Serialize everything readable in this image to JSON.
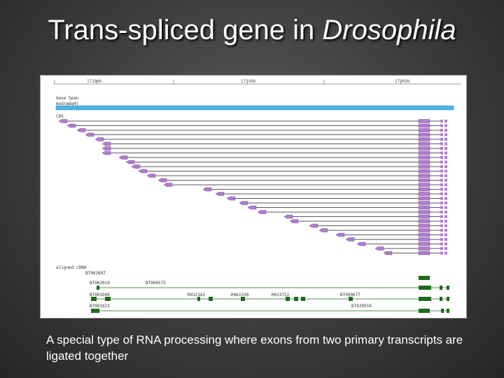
{
  "slide": {
    "title_prefix": "Trans-spliced gene in ",
    "title_italic": "Drosophila",
    "caption": "A special type of RNA processing where exons from two primary transcripts are ligated together"
  },
  "figure": {
    "ruler_labels": [
      "17180k",
      "17190k",
      "17200k"
    ],
    "gene_span_label": "Gene Span",
    "gene_name": "mod(mdg4)",
    "cds_label": "CDS",
    "cdna_label": "aligned cDNA",
    "cdna_clones": [
      "BT002697",
      "BT002010",
      "BT000575",
      "BT001049",
      "RH12162",
      "RH61530",
      "RH13752",
      "BT009677",
      "BT001923",
      "BT029550"
    ],
    "colors": {
      "gene_span": "#4db3e6",
      "cds_exon": "#b07ccc",
      "cdna_exon": "#1d6b1d",
      "ruler": "#999999"
    }
  }
}
